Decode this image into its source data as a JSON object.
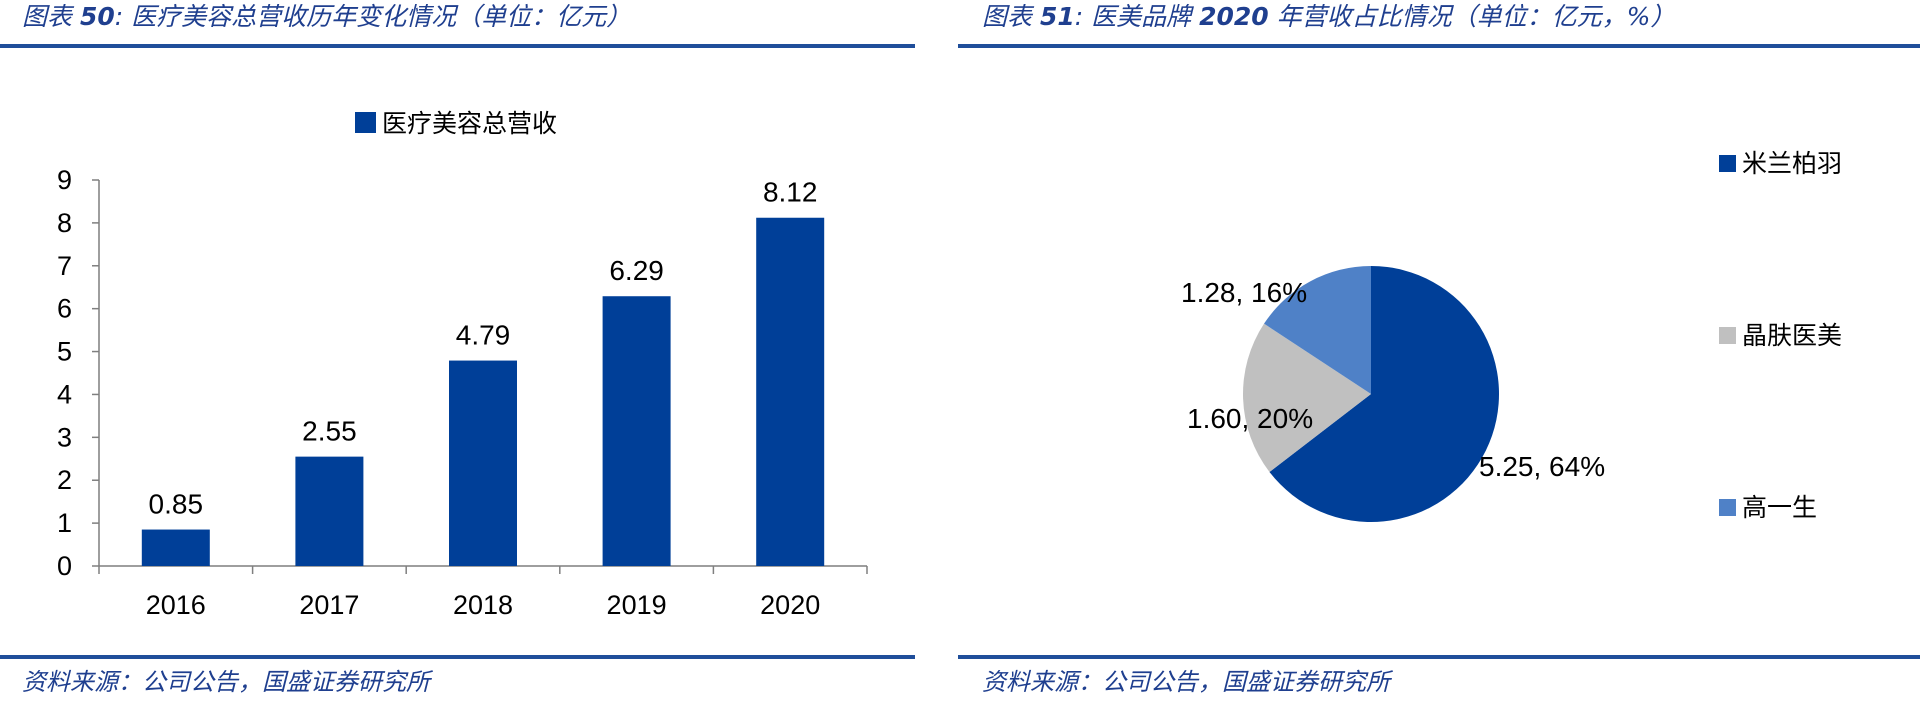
{
  "left": {
    "figure_label": "图表",
    "figure_num": "50",
    "figure_sep": ":",
    "title": "医疗美容总营收历年变化情况（单位：亿元）",
    "source": "资料来源：公司公告，国盛证券研究所"
  },
  "right": {
    "figure_label": "图表",
    "figure_num": "51",
    "figure_sep": ":",
    "title_prefix": "医美品牌",
    "title_year": "2020",
    "title_suffix": "年营收占比情况（单位：亿元，%）",
    "source": "资料来源：公司公告，国盛证券研究所"
  },
  "colors": {
    "bar": "#003f98",
    "pie": [
      "#003f98",
      "#c0c0c0",
      "#4f81c7"
    ],
    "title": "#1f3f8f",
    "rule": "#1f4e9a"
  },
  "chart_data": [
    {
      "type": "bar",
      "title": "",
      "legend": [
        "医疗美容总营收"
      ],
      "legend_position": "top-center",
      "categories": [
        "2016",
        "2017",
        "2018",
        "2019",
        "2020"
      ],
      "values": [
        0.85,
        2.55,
        4.79,
        6.29,
        8.12
      ],
      "data_labels": [
        "0.85",
        "2.55",
        "4.79",
        "6.29",
        "8.12"
      ],
      "yticks": [
        "0",
        "1",
        "2",
        "3",
        "4",
        "5",
        "6",
        "7",
        "8",
        "9"
      ],
      "ylim": [
        0,
        9
      ],
      "xlabel": "",
      "ylabel": "",
      "grid": false
    },
    {
      "type": "pie",
      "title": "",
      "legend_position": "right",
      "labels": [
        "米兰柏羽",
        "晶肤医美",
        "高一生"
      ],
      "values": [
        5.25,
        1.6,
        1.28
      ],
      "percents": [
        64,
        20,
        16
      ],
      "data_labels": [
        "5.25, 64%",
        "1.60, 20%",
        "1.28, 16%"
      ]
    }
  ]
}
